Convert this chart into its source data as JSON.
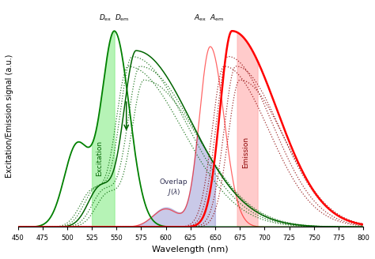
{
  "xlim": [
    450,
    800
  ],
  "ylim": [
    0,
    1.13
  ],
  "xlabel": "Wavelength (nm)",
  "ylabel": "Excitation/Emission signal (a.u.)",
  "background_color": "#ffffff",
  "green_fill_color": "#90EE90",
  "green_fill_alpha": 0.65,
  "red_fill_color": "#FFB0B0",
  "red_fill_alpha": 0.65,
  "overlap_fill_color": "#8888CC",
  "overlap_fill_alpha": 0.45,
  "excitation_label": "Excitation",
  "emission_label": "Emission",
  "overlap_label": "Overlap\n$J(\\lambda)$",
  "xticks": [
    450,
    475,
    500,
    525,
    550,
    575,
    600,
    625,
    650,
    675,
    700,
    725,
    750,
    775,
    800
  ]
}
